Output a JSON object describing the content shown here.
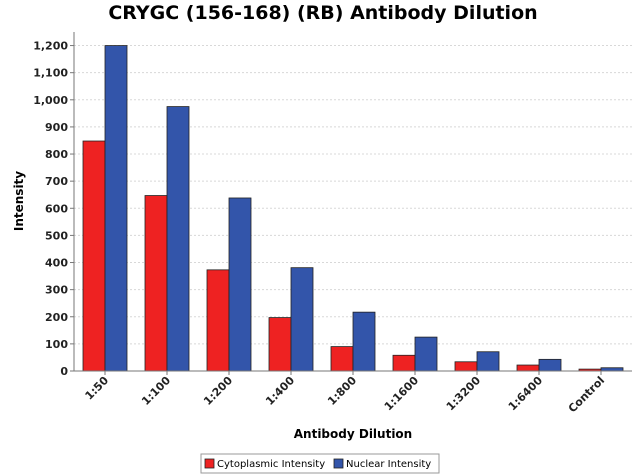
{
  "chart_data": {
    "type": "bar",
    "title": "CRYGC (156-168) (RB) Antibody Dilution",
    "xlabel": "Antibody Dilution",
    "ylabel": "Intensity",
    "ylim": [
      0,
      1250
    ],
    "yticks": [
      0,
      100,
      200,
      300,
      400,
      500,
      600,
      700,
      800,
      900,
      1000,
      1100,
      1200
    ],
    "ytick_labels": [
      "0",
      "100",
      "200",
      "300",
      "400",
      "500",
      "600",
      "700",
      "800",
      "900",
      "1,000",
      "1,100",
      "1,200"
    ],
    "categories": [
      "1:50",
      "1:100",
      "1:200",
      "1:400",
      "1:800",
      "1:1600",
      "1:3200",
      "1:6400",
      "Control"
    ],
    "series": [
      {
        "name": "Cytoplasmic Intensity",
        "color": "#ee2222",
        "values": [
          848,
          647,
          373,
          197,
          90,
          58,
          34,
          22,
          7
        ]
      },
      {
        "name": "Nuclear Intensity",
        "color": "#3355aa",
        "values": [
          1200,
          975,
          638,
          381,
          217,
          125,
          71,
          43,
          12
        ]
      }
    ],
    "grid": true,
    "legend_position": "bottom-center"
  }
}
